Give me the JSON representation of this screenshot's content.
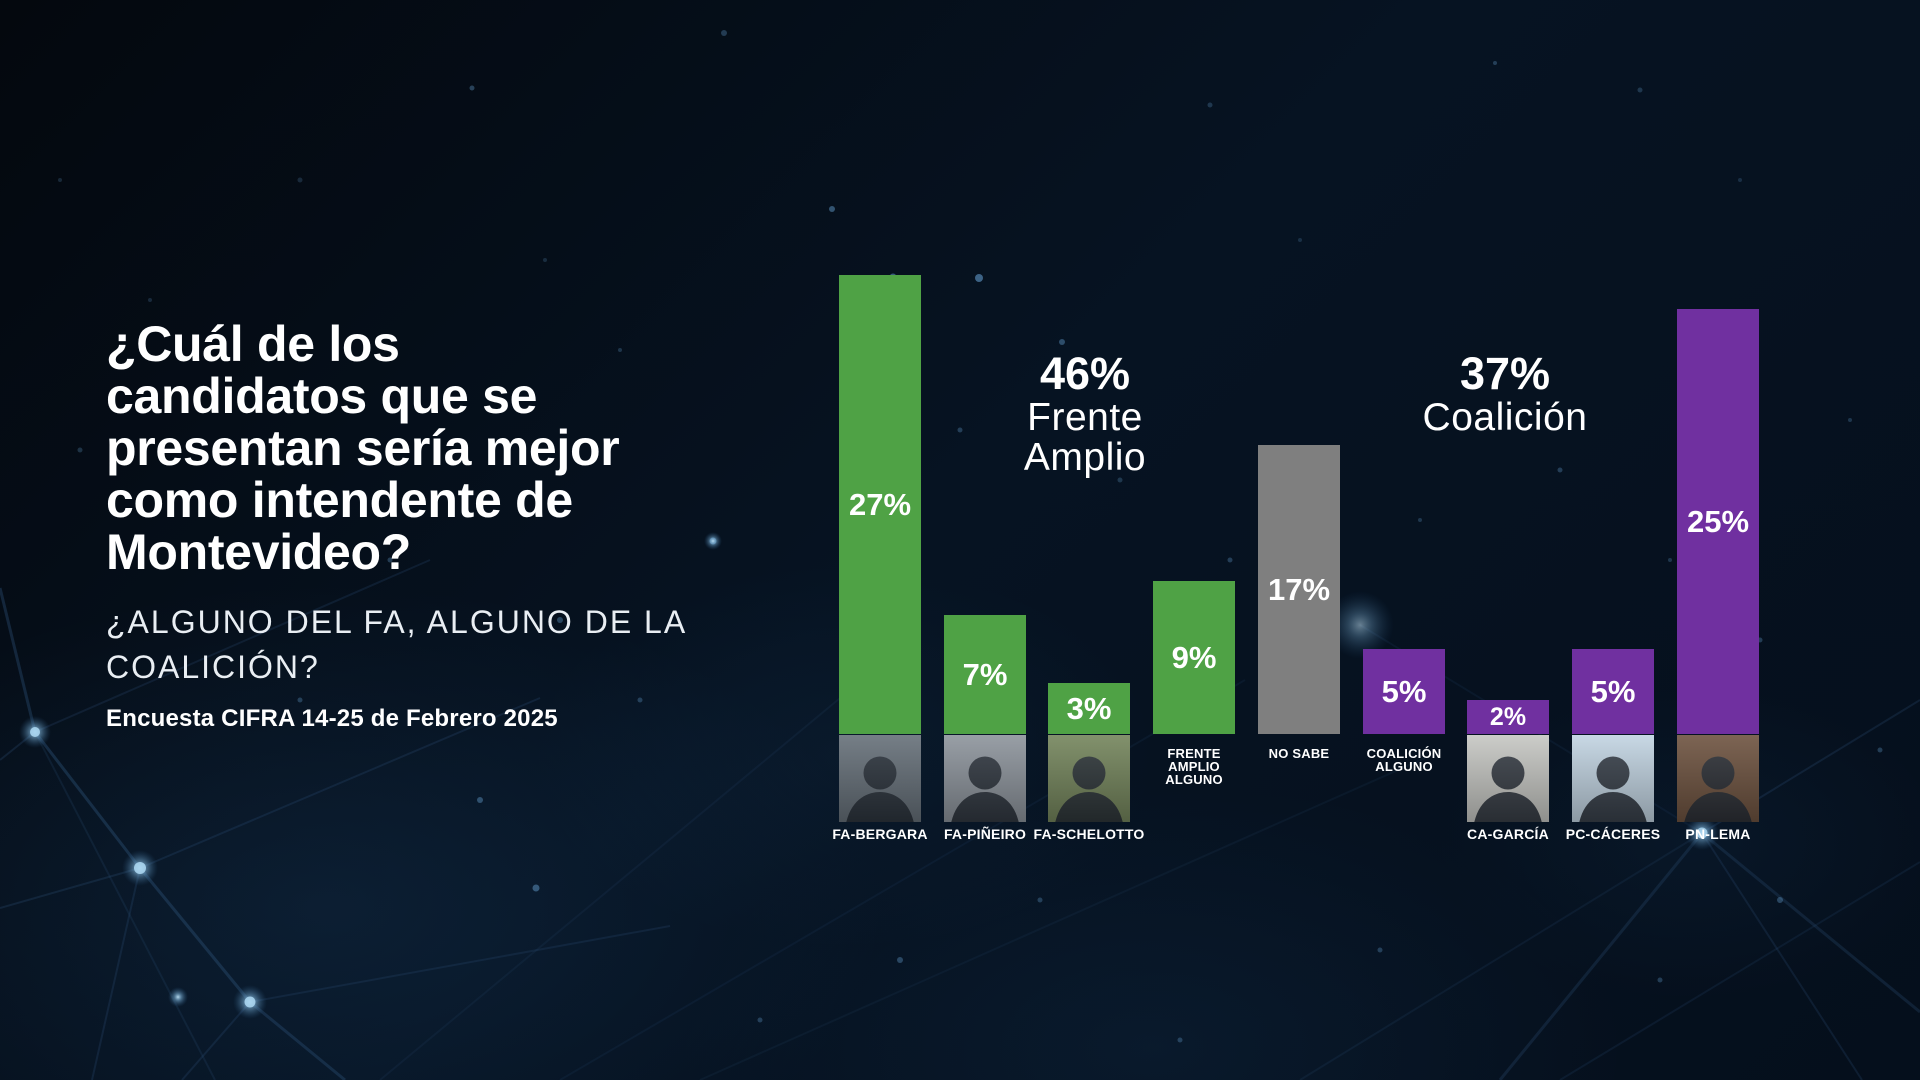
{
  "page": {
    "title_lines": [
      "¿Cuál de los",
      "candidatos que se",
      "presentan sería mejor",
      "como intendente de",
      "Montevideo?"
    ],
    "subtitle_lines": [
      "¿ALGUNO DEL FA, ALGUNO DE LA",
      "COALICIÓN?"
    ],
    "source": "Encuesta CIFRA 14-25 de Febrero 2025"
  },
  "colors": {
    "green": "#4fa245",
    "purple": "#7030a0",
    "gray": "#7f7f7f",
    "background": "#061322",
    "text": "#ffffff"
  },
  "chart_data": {
    "type": "bar",
    "title": "¿Cuál de los candidatos que se presentan sería mejor como intendente de Montevideo?",
    "subtitle": "¿Alguno del FA, alguno de la Coalición?",
    "source": "Encuesta CIFRA 14-25 de Febrero 2025",
    "unit": "%",
    "ylim": [
      0,
      30
    ],
    "grid": false,
    "legend": false,
    "bars": [
      {
        "label": "FA-BERGARA",
        "value": 27,
        "display": "27%",
        "color": "green",
        "photo": true,
        "photo_bg": "#667079"
      },
      {
        "label": "FA-PIÑEIRO",
        "value": 7,
        "display": "7%",
        "color": "green",
        "photo": true,
        "photo_bg": "#8d949c"
      },
      {
        "label": "FA-SCHELOTTO",
        "value": 3,
        "display": "3%",
        "color": "green",
        "photo": true,
        "photo_bg": "#74855c"
      },
      {
        "label": "FRENTE AMPLIO ALGUNO",
        "label_lines": [
          "FRENTE",
          "AMPLIO",
          "ALGUNO"
        ],
        "value": 9,
        "display": "9%",
        "color": "green",
        "photo": false
      },
      {
        "label": "NO SABE",
        "label_lines": [
          "NO SABE"
        ],
        "value": 17,
        "display": "17%",
        "color": "gray",
        "photo": false
      },
      {
        "label": "COALICIÓN ALGUNO",
        "label_lines": [
          "COALICIÓN",
          "ALGUNO"
        ],
        "value": 5,
        "display": "5%",
        "color": "purple",
        "photo": false
      },
      {
        "label": "CA-GARCÍA",
        "value": 2,
        "display": "2%",
        "color": "purple",
        "photo": true,
        "photo_bg": "#c6c7c3",
        "small_label": true
      },
      {
        "label": "PC-CÁCERES",
        "value": 5,
        "display": "5%",
        "color": "purple",
        "photo": true,
        "photo_bg": "#c2d4e2"
      },
      {
        "label": "PN-LEMA",
        "value": 25,
        "display": "25%",
        "color": "purple",
        "photo": true,
        "photo_bg": "#6e5340"
      }
    ],
    "group_annotations": [
      {
        "value": 46,
        "pct": "46%",
        "label_lines": [
          "Frente",
          "Amplio"
        ]
      },
      {
        "value": 37,
        "pct": "37%",
        "label_lines": [
          "Coalición"
        ]
      }
    ]
  }
}
